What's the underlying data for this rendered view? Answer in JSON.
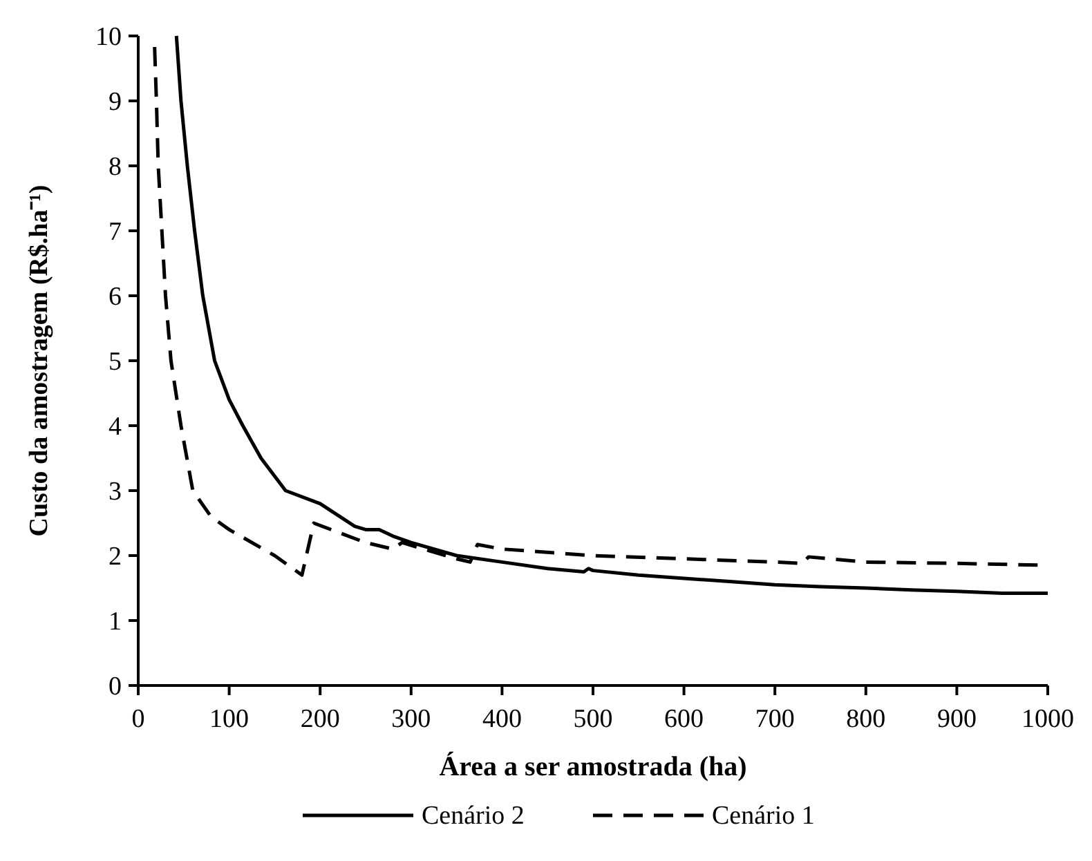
{
  "chart_data": {
    "type": "line",
    "xlabel": "Área a ser amostrada (ha)",
    "ylabel": "Custo da amostragem (R$.ha⁻¹)",
    "xlim": [
      0,
      1000
    ],
    "ylim": [
      0,
      10
    ],
    "xticks": [
      0,
      100,
      200,
      300,
      400,
      500,
      600,
      700,
      800,
      900,
      1000
    ],
    "yticks": [
      0,
      1,
      2,
      3,
      4,
      5,
      6,
      7,
      8,
      9,
      10
    ],
    "grid": false,
    "legend": "bottom",
    "series": [
      {
        "name": "Cenário 2",
        "color": "#000000",
        "line_style": "solid",
        "x": [
          42,
          47,
          54,
          62,
          71,
          84,
          100,
          115,
          135,
          162,
          200,
          238,
          250,
          265,
          280,
          300,
          350,
          400,
          450,
          490,
          495,
          500,
          550,
          600,
          650,
          700,
          750,
          800,
          850,
          900,
          950,
          1000
        ],
        "values": [
          10,
          9,
          8,
          7,
          6,
          5,
          4.4,
          4,
          3.5,
          3,
          2.8,
          2.45,
          2.4,
          2.4,
          2.3,
          2.2,
          2.0,
          1.9,
          1.8,
          1.75,
          1.8,
          1.77,
          1.7,
          1.65,
          1.6,
          1.55,
          1.52,
          1.5,
          1.47,
          1.45,
          1.42,
          1.42
        ]
      },
      {
        "name": "Cenário 1",
        "color": "#000000",
        "line_style": "dashed",
        "x": [
          18,
          20,
          22,
          26,
          30,
          36,
          47,
          60,
          80,
          100,
          150,
          180,
          193,
          250,
          280,
          290,
          350,
          365,
          373,
          400,
          500,
          600,
          700,
          730,
          737,
          800,
          900,
          1000
        ],
        "values": [
          9.83,
          9,
          8,
          7,
          6,
          5,
          4,
          3,
          2.6,
          2.4,
          2.0,
          1.7,
          2.5,
          2.2,
          2.1,
          2.2,
          1.95,
          1.9,
          2.17,
          2.1,
          2.0,
          1.95,
          1.9,
          1.88,
          1.98,
          1.9,
          1.88,
          1.85
        ]
      }
    ]
  }
}
